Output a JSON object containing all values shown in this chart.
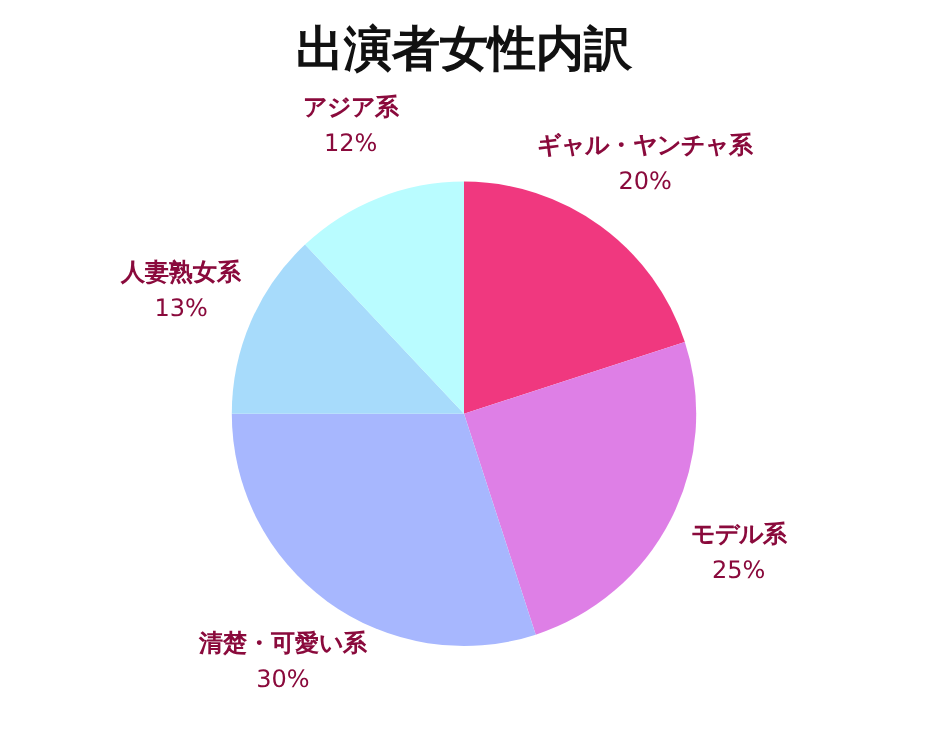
{
  "chart_data": {
    "type": "pie",
    "title": "出演者女性内訳",
    "categories": [
      "ギャル・ヤンチャ系",
      "モデル系",
      "清楚・可愛い系",
      "人妻熟女系",
      "アジア系"
    ],
    "values": [
      20,
      25,
      30,
      13,
      12
    ],
    "value_labels": [
      "20%",
      "25%",
      "30%",
      "13%",
      "12%"
    ],
    "colors": [
      "#f0387f",
      "#de7fe6",
      "#a7b7fe",
      "#a7dbfb",
      "#b9fcff"
    ],
    "legend": false
  }
}
